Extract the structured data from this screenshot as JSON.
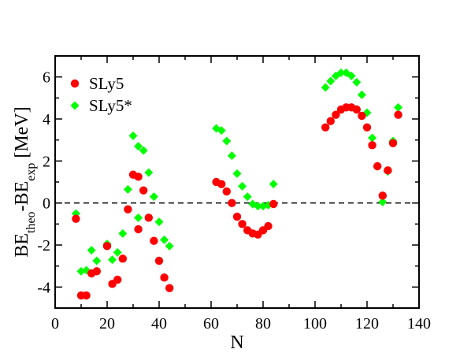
{
  "chart_data": {
    "type": "scatter",
    "xlabel": "N",
    "ylabel": {
      "parts": [
        {
          "text": "BE",
          "sub": false
        },
        {
          "text": "theo",
          "sub": true
        },
        {
          "text": "-BE",
          "sub": false
        },
        {
          "text": "exp",
          "sub": true
        },
        {
          "text": " [MeV]",
          "sub": false
        }
      ]
    },
    "xlim": [
      0,
      140
    ],
    "ylim": [
      -5,
      7
    ],
    "xticks": [
      0,
      20,
      40,
      60,
      80,
      100,
      120,
      140
    ],
    "yticks": [
      -4,
      -2,
      0,
      2,
      4,
      6
    ],
    "xtick_labels": [
      "0",
      "20",
      "40",
      "60",
      "80",
      "100",
      "120",
      "140"
    ],
    "ytick_labels": [
      "-4",
      "-2",
      "0",
      "2",
      "4",
      "6"
    ],
    "reference_line": {
      "y": 0,
      "style": "dashed"
    },
    "legend": {
      "placement": "top-left"
    },
    "series": [
      {
        "name": "SLy5",
        "marker": "circle",
        "color": "#ff0000",
        "x": [
          8,
          10,
          12,
          14,
          16,
          20,
          22,
          24,
          26,
          28,
          30,
          32,
          32,
          34,
          36,
          38,
          40,
          42,
          44,
          62,
          64,
          66,
          68,
          70,
          72,
          74,
          76,
          78,
          80,
          82,
          84,
          104,
          106,
          108,
          110,
          112,
          114,
          116,
          118,
          120,
          122,
          124,
          126,
          128,
          130,
          132
        ],
        "y": [
          -0.75,
          -4.4,
          -4.4,
          -3.35,
          -3.25,
          -2.05,
          -3.85,
          -3.65,
          -2.65,
          -0.3,
          1.35,
          1.25,
          -1.25,
          0.6,
          -0.7,
          -1.8,
          -2.75,
          -3.55,
          -4.05,
          1.0,
          0.9,
          0.55,
          0.0,
          -0.65,
          -1.0,
          -1.3,
          -1.45,
          -1.5,
          -1.3,
          -1.1,
          -0.05,
          3.6,
          3.9,
          4.2,
          4.45,
          4.55,
          4.55,
          4.45,
          4.15,
          3.6,
          2.75,
          1.75,
          0.35,
          1.55,
          2.85,
          4.2
        ]
      },
      {
        "name": "SLy5*",
        "marker": "diamond",
        "color": "#00ff00",
        "x": [
          8,
          10,
          12,
          14,
          16,
          20,
          22,
          24,
          26,
          28,
          30,
          32,
          32,
          34,
          36,
          38,
          40,
          42,
          44,
          62,
          64,
          66,
          68,
          70,
          72,
          74,
          76,
          78,
          80,
          82,
          84,
          104,
          106,
          108,
          110,
          112,
          114,
          116,
          118,
          120,
          122,
          124,
          126,
          128,
          130,
          132
        ],
        "y": [
          -0.5,
          -3.25,
          -3.2,
          -2.25,
          -2.75,
          -1.95,
          -2.7,
          -2.35,
          -1.45,
          0.65,
          3.2,
          2.7,
          -0.7,
          2.5,
          1.45,
          0.3,
          -0.9,
          -1.75,
          -2.05,
          3.55,
          3.45,
          2.95,
          2.25,
          1.4,
          0.8,
          0.3,
          -0.05,
          -0.15,
          -0.15,
          -0.1,
          0.9,
          5.5,
          5.8,
          6.05,
          6.2,
          6.2,
          6.05,
          5.75,
          5.15,
          4.3,
          3.1,
          1.75,
          0.05,
          1.5,
          2.95,
          4.55
        ]
      }
    ]
  }
}
